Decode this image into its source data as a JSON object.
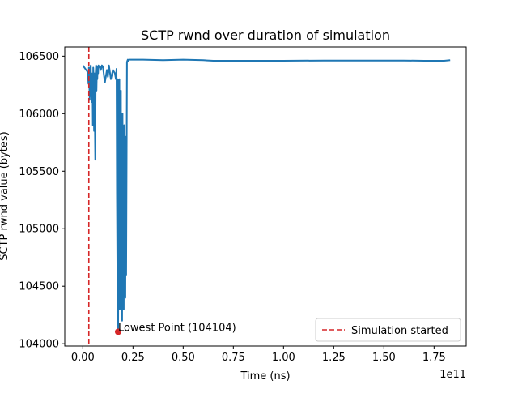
{
  "chart_data": {
    "type": "line",
    "title": "SCTP rwnd over duration of simulation",
    "xlabel": "Time (ns)",
    "ylabel": "SCTP rwnd value (bytes)",
    "x_offset_label": "1e11",
    "xlim": [
      -0.09,
      1.91
    ],
    "ylim": [
      103980,
      106580
    ],
    "x_ticks": [
      0.0,
      0.25,
      0.5,
      0.75,
      1.0,
      1.25,
      1.5,
      1.75
    ],
    "x_tick_labels": [
      "0.00",
      "0.25",
      "0.50",
      "0.75",
      "1.00",
      "1.25",
      "1.50",
      "1.75"
    ],
    "y_ticks": [
      104000,
      104500,
      105000,
      105500,
      106000,
      106500
    ],
    "y_tick_labels": [
      "104000",
      "104500",
      "105000",
      "105500",
      "106000",
      "106500"
    ],
    "grid": false,
    "legend_position": "lower-right",
    "colors": {
      "series": "#1f77b4",
      "simulation_start": "#d62728",
      "lowest_point": "#d62728"
    },
    "series": [
      {
        "color": "#1f77b4",
        "x": [
          0.0,
          0.025,
          0.028,
          0.03,
          0.032,
          0.034,
          0.036,
          0.038,
          0.04,
          0.042,
          0.044,
          0.046,
          0.048,
          0.05,
          0.052,
          0.054,
          0.056,
          0.058,
          0.06,
          0.062,
          0.064,
          0.066,
          0.068,
          0.07,
          0.072,
          0.074,
          0.076,
          0.078,
          0.08,
          0.085,
          0.09,
          0.095,
          0.1,
          0.11,
          0.12,
          0.125,
          0.13,
          0.14,
          0.15,
          0.16,
          0.165,
          0.168,
          0.17,
          0.172,
          0.174,
          0.176,
          0.178,
          0.18,
          0.182,
          0.184,
          0.186,
          0.188,
          0.19,
          0.192,
          0.194,
          0.196,
          0.198,
          0.2,
          0.202,
          0.204,
          0.206,
          0.208,
          0.21,
          0.212,
          0.214,
          0.216,
          0.218,
          0.22,
          0.222,
          0.224,
          0.226,
          0.23,
          0.3,
          0.4,
          0.5,
          0.6,
          0.65,
          0.8,
          1.0,
          1.2,
          1.4,
          1.6,
          1.7,
          1.8,
          1.83
        ],
        "y": [
          106420,
          106360,
          106260,
          106400,
          106300,
          106120,
          106250,
          106400,
          106420,
          106150,
          106350,
          106100,
          106350,
          105900,
          106400,
          106300,
          105850,
          106350,
          105950,
          105600,
          106350,
          106420,
          106200,
          106380,
          106300,
          106410,
          106350,
          106420,
          106400,
          106410,
          106380,
          106420,
          106410,
          106270,
          106380,
          106320,
          106420,
          106300,
          106380,
          106350,
          106300,
          106390,
          105300,
          104700,
          106300,
          104104,
          105500,
          104900,
          106300,
          104300,
          105900,
          104600,
          106200,
          104400,
          105700,
          104200,
          106000,
          104500,
          105600,
          104300,
          105900,
          104700,
          105200,
          104400,
          105800,
          104600,
          105500,
          106450,
          106460,
          106470,
          106460,
          106470,
          106470,
          106465,
          106470,
          106465,
          106460,
          106460,
          106460,
          106462,
          106462,
          106462,
          106460,
          106460,
          106465
        ]
      }
    ],
    "vline": {
      "x": 0.03,
      "label": "Simulation started",
      "style": "dashed"
    },
    "lowest_point": {
      "x": 0.176,
      "y": 104104,
      "label": "Lowest Point (104104)"
    }
  }
}
